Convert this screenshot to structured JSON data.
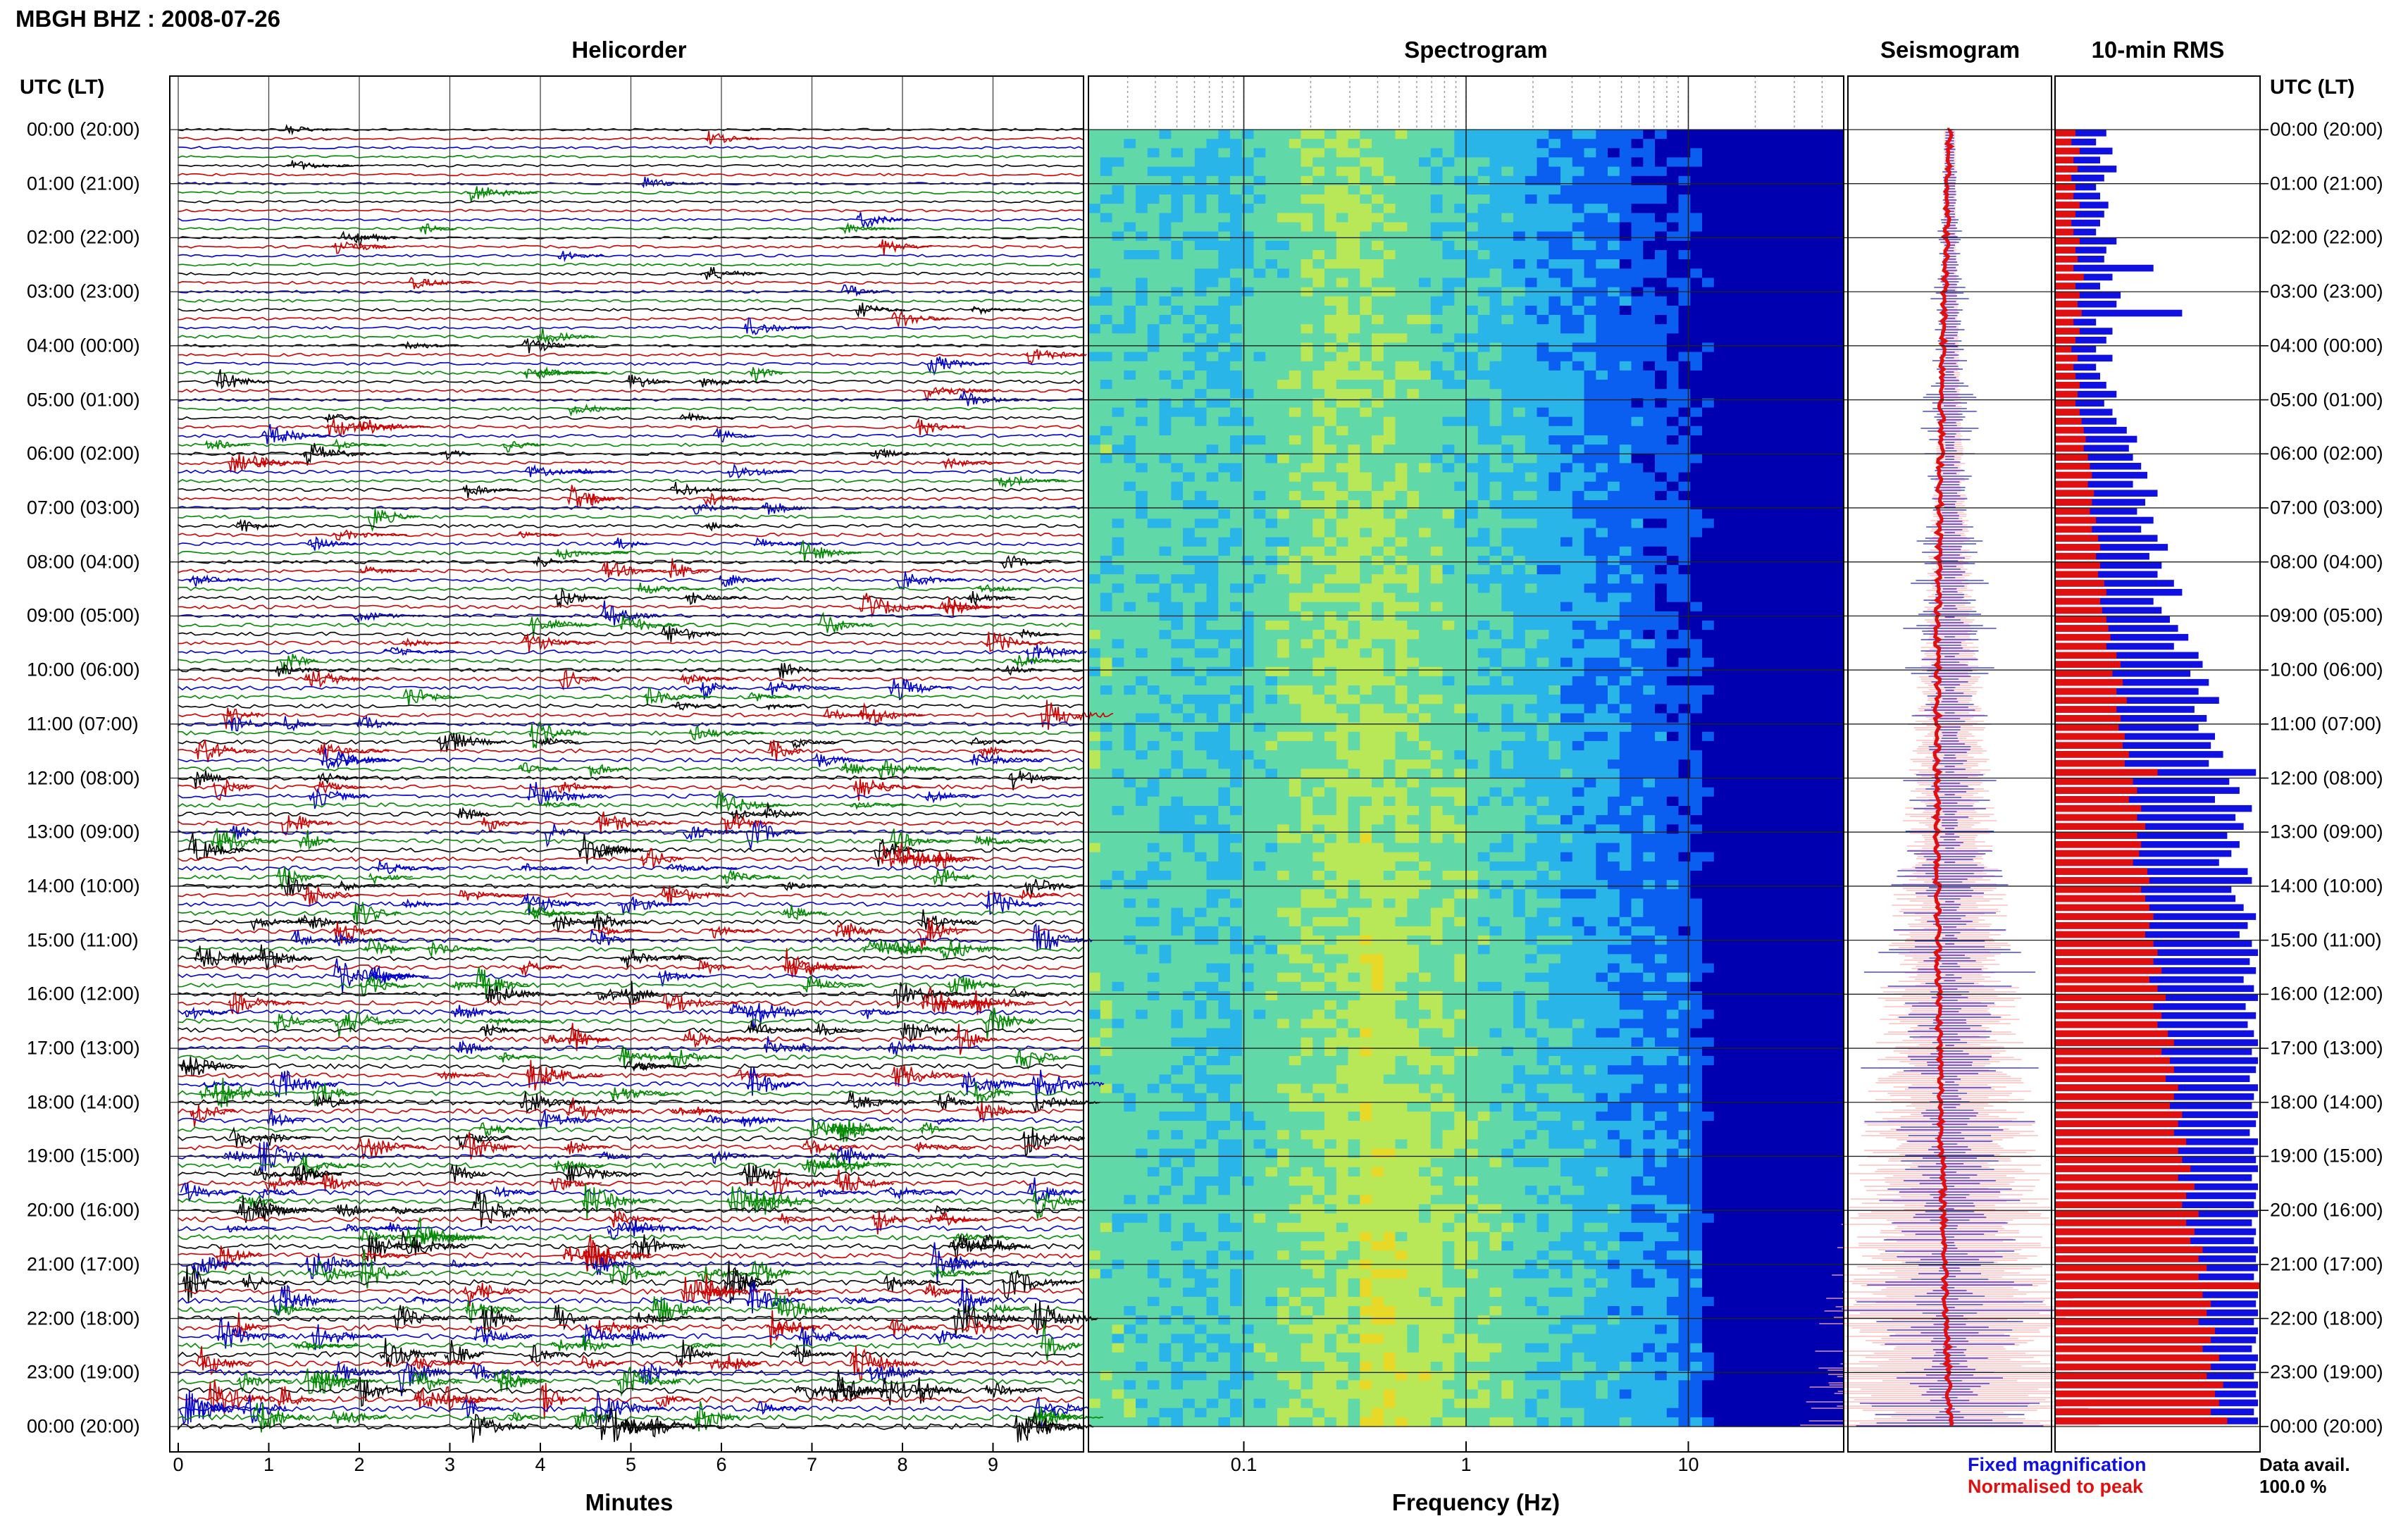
{
  "header": {
    "station": "MBGH BHZ : 2008-07-26"
  },
  "panels": {
    "helicorder": "Helicorder",
    "spectrogram": "Spectrogram",
    "seismogram": "Seismogram",
    "rms": "10-min RMS"
  },
  "time_axis": {
    "header_left": "UTC (LT)",
    "header_right": "UTC (LT)",
    "labels": [
      "00:00 (20:00)",
      "01:00 (21:00)",
      "02:00 (22:00)",
      "03:00 (23:00)",
      "04:00 (00:00)",
      "05:00 (01:00)",
      "06:00 (02:00)",
      "07:00 (03:00)",
      "08:00 (04:00)",
      "09:00 (05:00)",
      "10:00 (06:00)",
      "11:00 (07:00)",
      "12:00 (08:00)",
      "13:00 (09:00)",
      "14:00 (10:00)",
      "15:00 (11:00)",
      "16:00 (12:00)",
      "17:00 (13:00)",
      "18:00 (14:00)",
      "19:00 (15:00)",
      "20:00 (16:00)",
      "21:00 (17:00)",
      "22:00 (18:00)",
      "23:00 (19:00)",
      "00:00 (20:00)"
    ]
  },
  "axes": {
    "minutes_label": "Minutes",
    "minutes_ticks": [
      "0",
      "1",
      "2",
      "3",
      "4",
      "5",
      "6",
      "7",
      "8",
      "9"
    ],
    "frequency_label": "Frequency (Hz)",
    "frequency_ticks": [
      "0.1",
      "1",
      "10"
    ]
  },
  "legend": {
    "fixed": "Fixed magnification",
    "normalised": "Normalised to peak",
    "fixed_color": "#1010e0",
    "normalised_color": "#e01010"
  },
  "data_availability": {
    "label": "Data avail.",
    "value": "100.0 %"
  },
  "chart_data": [
    {
      "type": "line",
      "panel": "helicorder",
      "title": "Helicorder",
      "xlabel": "Minutes",
      "xlim": [
        0,
        10
      ],
      "trace_colors": [
        "#000000",
        "#cc0000",
        "#0000cc",
        "#008800"
      ],
      "traces_per_hour": 6,
      "hours": 24
    },
    {
      "type": "heatmap",
      "panel": "spectrogram",
      "title": "Spectrogram",
      "xlabel": "Frequency (Hz)",
      "xscale": "log",
      "xlim": [
        0.02,
        50
      ],
      "colormap": [
        "#0000b0",
        "#0a5ff0",
        "#2ab5e8",
        "#60d8a8",
        "#b8e858",
        "#e8d828"
      ]
    },
    {
      "type": "bar",
      "panel": "rms",
      "title": "10-min RMS",
      "series": [
        {
          "name": "Fixed magnification",
          "color": "#1010e0",
          "values": [
            0.25,
            0.2,
            0.28,
            0.22,
            0.3,
            0.24,
            0.2,
            0.22,
            0.26,
            0.24,
            0.22,
            0.2,
            0.3,
            0.25,
            0.24,
            0.48,
            0.28,
            0.22,
            0.32,
            0.3,
            0.62,
            0.2,
            0.28,
            0.25,
            0.2,
            0.28,
            0.2,
            0.22,
            0.25,
            0.3,
            0.24,
            0.28,
            0.3,
            0.35,
            0.4,
            0.36,
            0.38,
            0.42,
            0.45,
            0.38,
            0.5,
            0.44,
            0.4,
            0.48,
            0.42,
            0.5,
            0.55,
            0.46,
            0.52,
            0.5,
            0.58,
            0.62,
            0.48,
            0.52,
            0.56,
            0.6,
            0.65,
            0.58,
            0.7,
            0.72,
            0.66,
            0.75,
            0.7,
            0.8,
            0.68,
            0.74,
            0.7,
            0.78,
            0.76,
            0.82,
            0.75,
            0.98,
            0.85,
            0.9,
            0.78,
            0.96,
            0.88,
            0.92,
            0.84,
            0.9,
            0.86,
            0.8,
            0.94,
            0.96,
            0.86,
            0.88,
            0.92,
            0.98,
            0.94,
            0.9,
            0.96,
            0.99,
            0.95,
            0.98,
            0.92,
            0.97,
            0.99,
            0.93,
            0.98,
            0.94,
            0.97,
            0.99,
            0.96,
            0.99,
            0.98,
            0.95,
            0.99,
            0.97,
            0.96,
            0.99,
            0.98,
            0.95,
            0.99,
            0.97,
            0.98,
            0.99,
            0.96,
            0.99,
            0.98,
            0.97,
            0.99,
            0.96,
            0.98,
            0.97,
            0.99,
            0.98,
            0.99,
            0.97,
            0.95,
            0.99,
            0.98,
            0.99,
            0.97,
            0.99,
            0.98,
            0.96,
            0.99,
            0.98,
            0.97,
            0.99,
            0.98,
            0.99,
            0.97,
            0.99
          ]
        },
        {
          "name": "Normalised to peak",
          "color": "#e01010",
          "values": [
            0.1,
            0.08,
            0.12,
            0.09,
            0.11,
            0.08,
            0.1,
            0.09,
            0.12,
            0.1,
            0.08,
            0.09,
            0.12,
            0.1,
            0.11,
            0.09,
            0.14,
            0.1,
            0.12,
            0.11,
            0.13,
            0.09,
            0.12,
            0.1,
            0.08,
            0.11,
            0.09,
            0.1,
            0.12,
            0.11,
            0.1,
            0.12,
            0.13,
            0.14,
            0.15,
            0.14,
            0.16,
            0.17,
            0.18,
            0.16,
            0.19,
            0.18,
            0.17,
            0.2,
            0.18,
            0.21,
            0.22,
            0.2,
            0.22,
            0.21,
            0.24,
            0.25,
            0.22,
            0.23,
            0.25,
            0.26,
            0.27,
            0.25,
            0.3,
            0.32,
            0.28,
            0.33,
            0.3,
            0.35,
            0.3,
            0.32,
            0.31,
            0.34,
            0.33,
            0.36,
            0.34,
            0.5,
            0.38,
            0.4,
            0.36,
            0.42,
            0.4,
            0.44,
            0.4,
            0.42,
            0.41,
            0.38,
            0.45,
            0.46,
            0.42,
            0.44,
            0.46,
            0.48,
            0.46,
            0.44,
            0.48,
            0.5,
            0.48,
            0.52,
            0.46,
            0.5,
            0.54,
            0.48,
            0.52,
            0.5,
            0.55,
            0.58,
            0.52,
            0.56,
            0.58,
            0.54,
            0.6,
            0.58,
            0.56,
            0.62,
            0.6,
            0.58,
            0.64,
            0.6,
            0.62,
            0.66,
            0.6,
            0.68,
            0.64,
            0.62,
            0.7,
            0.64,
            0.68,
            0.66,
            0.72,
            0.7,
            0.74,
            0.7,
            1.0,
            0.72,
            0.76,
            0.74,
            0.7,
            0.78,
            0.76,
            0.72,
            0.8,
            0.76,
            0.74,
            0.82,
            0.78,
            0.8,
            0.76,
            0.84
          ]
        }
      ]
    }
  ]
}
